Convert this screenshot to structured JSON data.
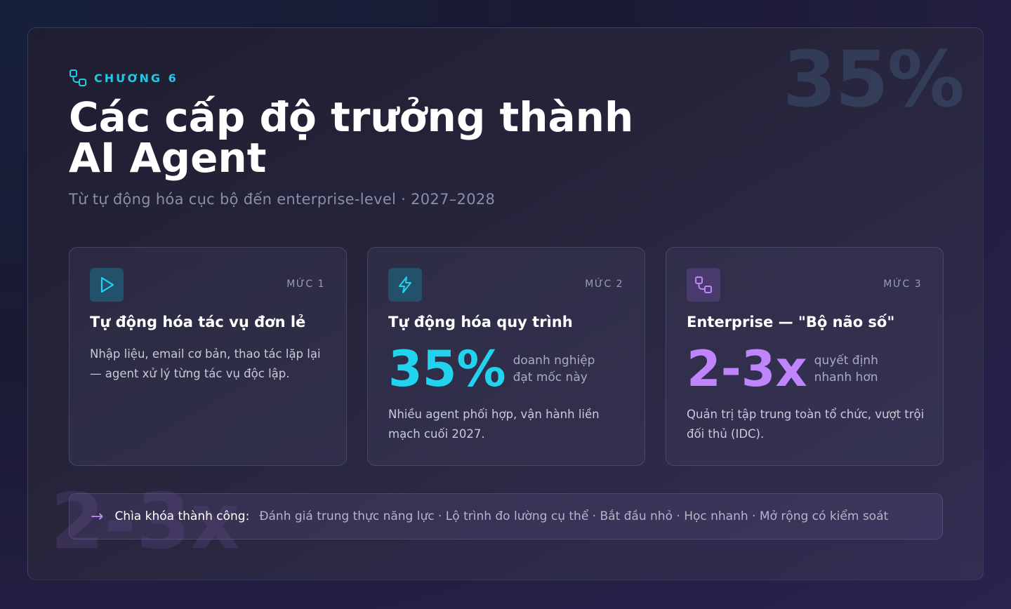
{
  "watermarks": {
    "top": "35%",
    "bottom": "2-3x"
  },
  "header": {
    "chapter": "CHƯƠNG 6",
    "title_line1": "Các cấp độ trưởng thành",
    "title_line2": "AI Agent",
    "subtitle": "Từ tự động hóa cục bộ đến enterprise-level · 2027–2028"
  },
  "cards": [
    {
      "level": "MỨC 1",
      "icon": "play-icon",
      "title": "Tự động hóa tác vụ đơn lẻ",
      "description": "Nhập liệu, email cơ bản, thao tác lặp lại — agent xử lý từng tác vụ độc lập."
    },
    {
      "level": "MỨC 2",
      "icon": "lightning-icon",
      "title": "Tự động hóa quy trình",
      "stat_value": "35%",
      "stat_note_line1": "doanh nghiệp",
      "stat_note_line2": "đạt mốc này",
      "description": "Nhiều agent phối hợp, vận hành liền mạch cuối 2027."
    },
    {
      "level": "MỨC 3",
      "icon": "workflow-icon",
      "title": "Enterprise — \"Bộ não số\"",
      "stat_value": "2-3x",
      "stat_note_line1": "quyết định",
      "stat_note_line2": "nhanh hơn",
      "description": "Quản trị tập trung toàn tổ chức, vượt trội đối thủ (IDC)."
    }
  ],
  "key_bar": {
    "label": "Chìa khóa thành công:",
    "text": "Đánh giá trung thực năng lực · Lộ trình đo lường cụ thể · Bắt đầu nhỏ · Học nhanh · Mở rộng có kiểm soát"
  },
  "colors": {
    "cyan": "#22d3ee",
    "purple": "#c084fc"
  }
}
